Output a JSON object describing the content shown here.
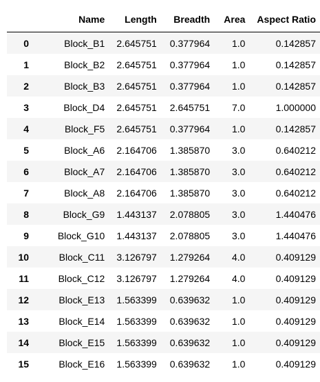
{
  "table": {
    "columns": [
      "Name",
      "Length",
      "Breadth",
      "Area",
      "Aspect Ratio"
    ],
    "rows": [
      {
        "index": "0",
        "cells": [
          "Block_B1",
          "2.645751",
          "0.377964",
          "1.0",
          "0.142857"
        ]
      },
      {
        "index": "1",
        "cells": [
          "Block_B2",
          "2.645751",
          "0.377964",
          "1.0",
          "0.142857"
        ]
      },
      {
        "index": "2",
        "cells": [
          "Block_B3",
          "2.645751",
          "0.377964",
          "1.0",
          "0.142857"
        ]
      },
      {
        "index": "3",
        "cells": [
          "Block_D4",
          "2.645751",
          "2.645751",
          "7.0",
          "1.000000"
        ]
      },
      {
        "index": "4",
        "cells": [
          "Block_F5",
          "2.645751",
          "0.377964",
          "1.0",
          "0.142857"
        ]
      },
      {
        "index": "5",
        "cells": [
          "Block_A6",
          "2.164706",
          "1.385870",
          "3.0",
          "0.640212"
        ]
      },
      {
        "index": "6",
        "cells": [
          "Block_A7",
          "2.164706",
          "1.385870",
          "3.0",
          "0.640212"
        ]
      },
      {
        "index": "7",
        "cells": [
          "Block_A8",
          "2.164706",
          "1.385870",
          "3.0",
          "0.640212"
        ]
      },
      {
        "index": "8",
        "cells": [
          "Block_G9",
          "1.443137",
          "2.078805",
          "3.0",
          "1.440476"
        ]
      },
      {
        "index": "9",
        "cells": [
          "Block_G10",
          "1.443137",
          "2.078805",
          "3.0",
          "1.440476"
        ]
      },
      {
        "index": "10",
        "cells": [
          "Block_C11",
          "3.126797",
          "1.279264",
          "4.0",
          "0.409129"
        ]
      },
      {
        "index": "11",
        "cells": [
          "Block_C12",
          "3.126797",
          "1.279264",
          "4.0",
          "0.409129"
        ]
      },
      {
        "index": "12",
        "cells": [
          "Block_E13",
          "1.563399",
          "0.639632",
          "1.0",
          "0.409129"
        ]
      },
      {
        "index": "13",
        "cells": [
          "Block_E14",
          "1.563399",
          "0.639632",
          "1.0",
          "0.409129"
        ]
      },
      {
        "index": "14",
        "cells": [
          "Block_E15",
          "1.563399",
          "0.639632",
          "1.0",
          "0.409129"
        ]
      },
      {
        "index": "15",
        "cells": [
          "Block_E16",
          "1.563399",
          "0.639632",
          "1.0",
          "0.409129"
        ]
      }
    ]
  }
}
